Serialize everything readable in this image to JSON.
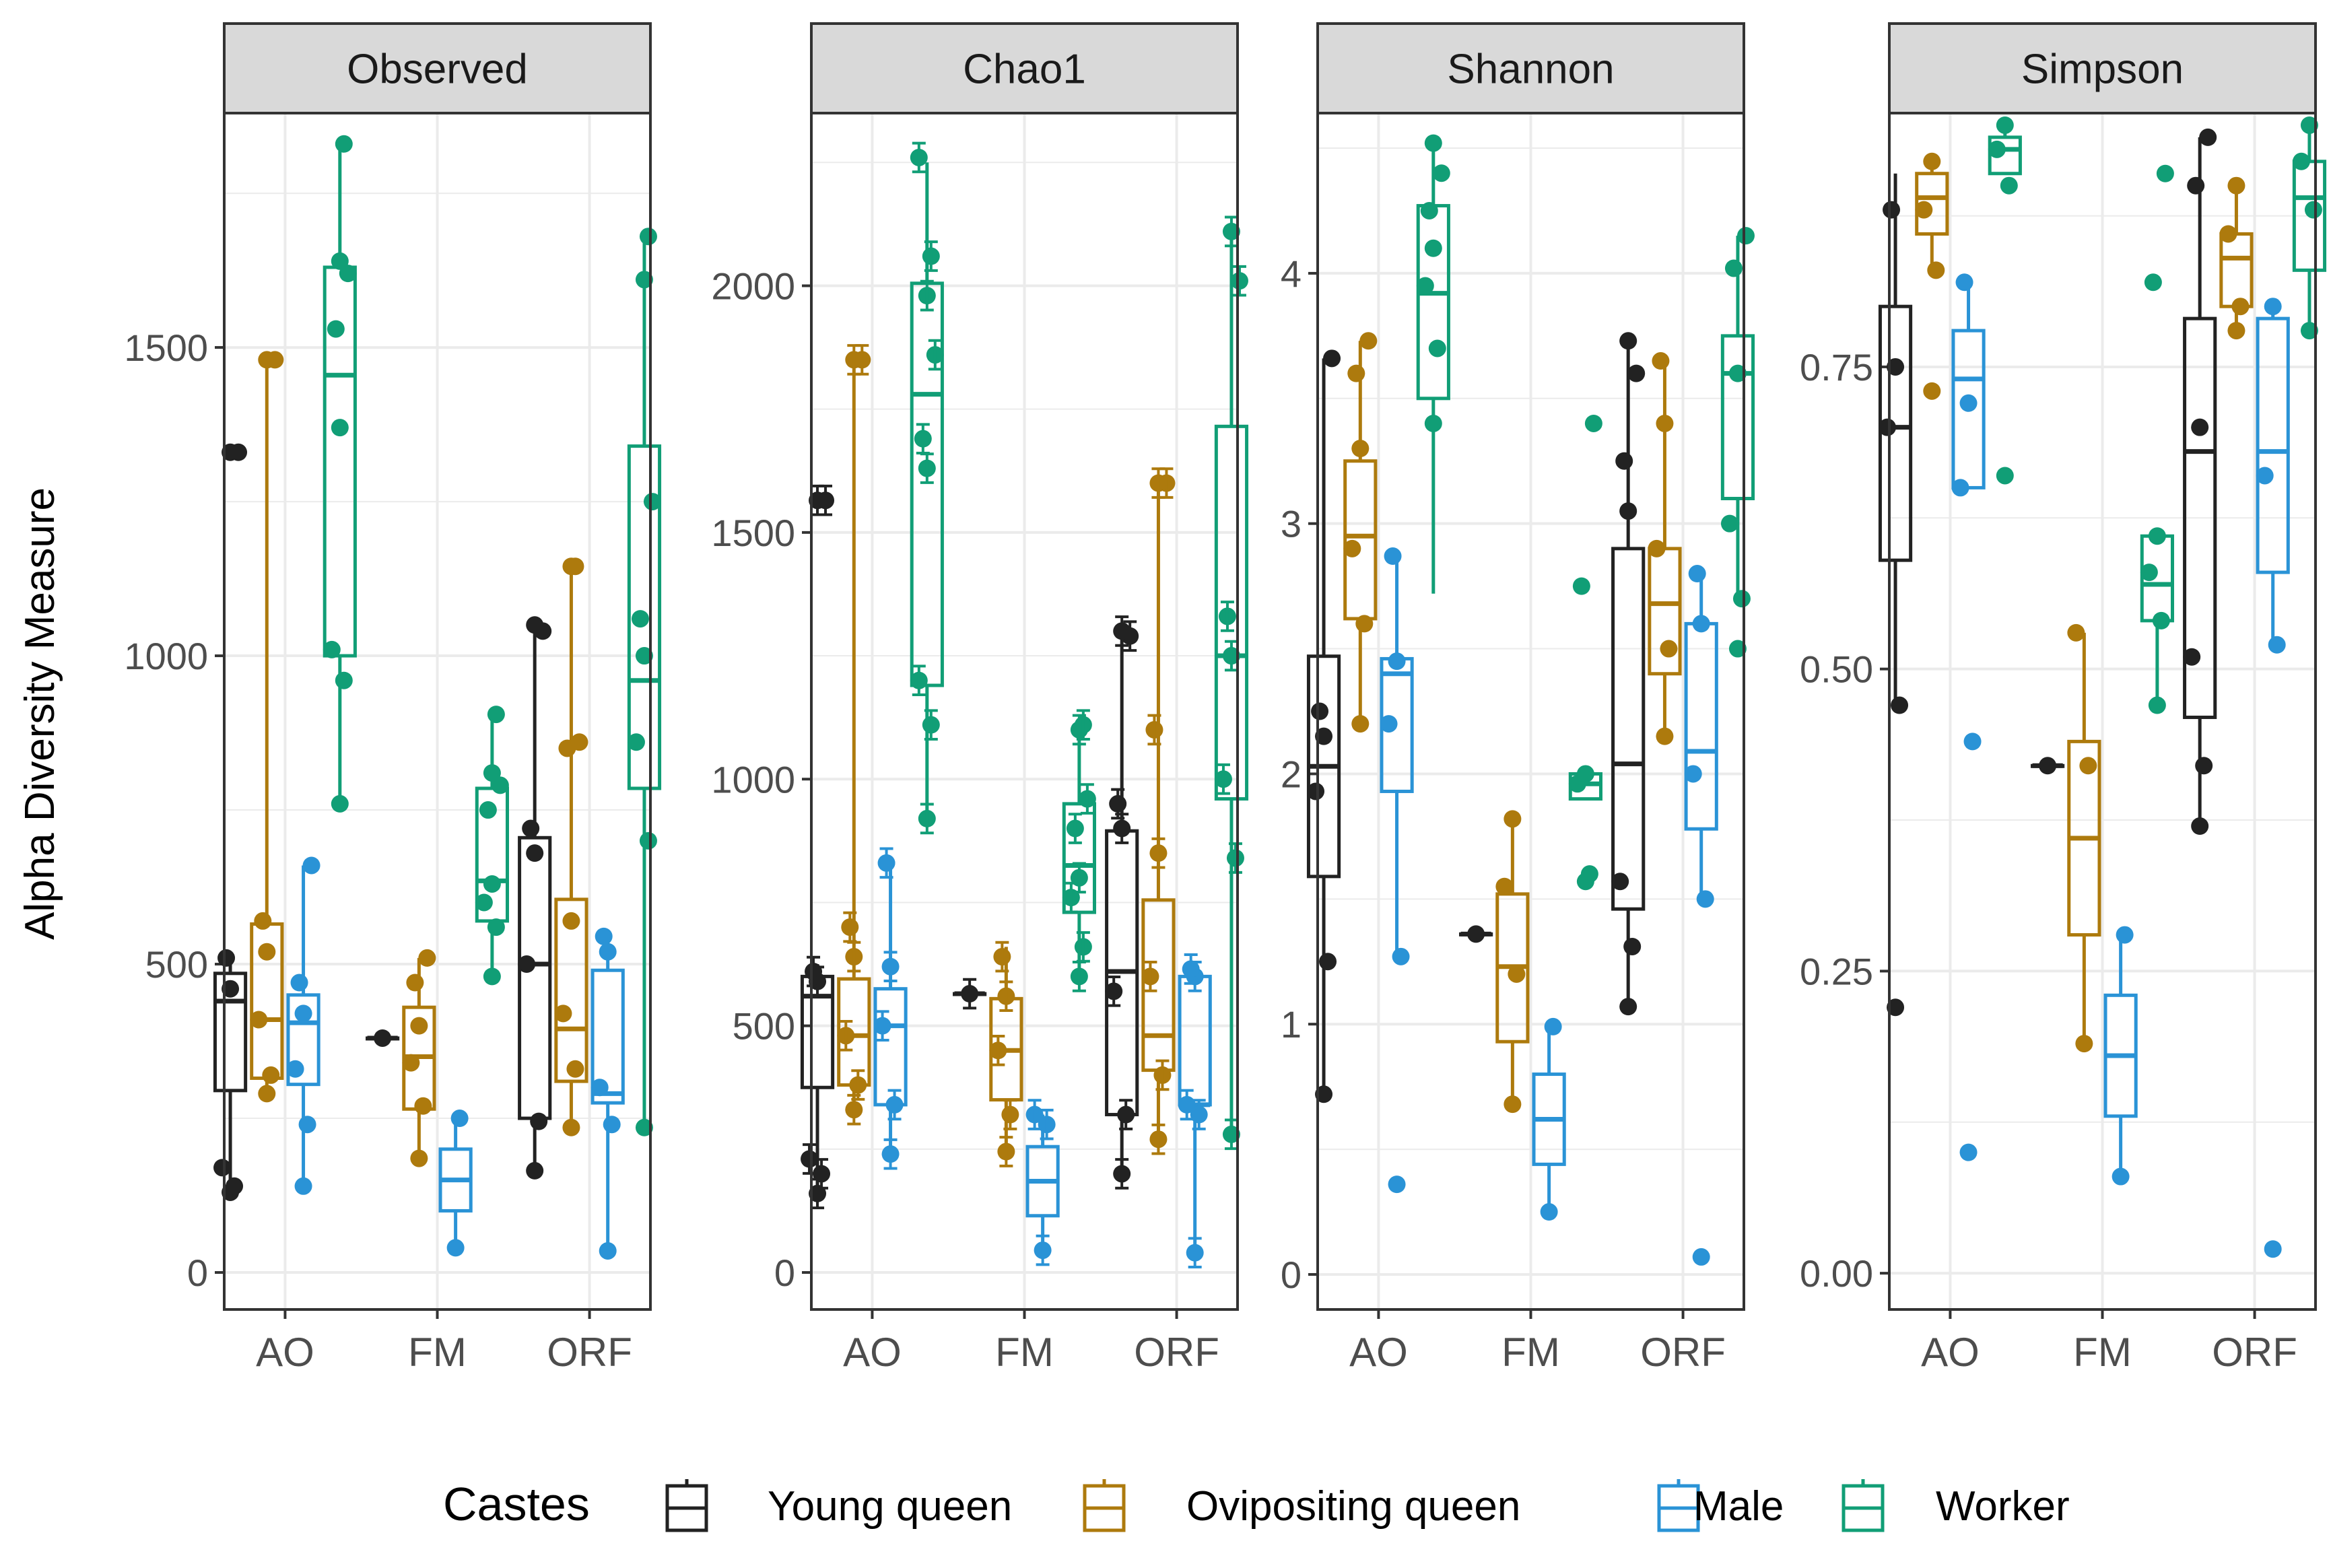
{
  "colors": {
    "Young queen": "#222222",
    "Ovipositing queen": "#AD7A0D",
    "Male": "#2A93D6",
    "Worker": "#119E76",
    "strip_bg": "#D9D9D9",
    "grid": "#EBEBEB",
    "axis_text": "#4D4D4D"
  },
  "ylabel": "Alpha Diversity Measure",
  "legend": {
    "title": "Castes",
    "entries": [
      "Young queen",
      "Ovipositing queen",
      "Male",
      "Worker"
    ]
  },
  "chart_data": [
    {
      "type": "box",
      "title": "Observed",
      "categories": [
        "AO",
        "FM",
        "ORF"
      ],
      "ylim": [
        -60,
        1880
      ],
      "yticks": [
        0,
        500,
        1000,
        1500
      ],
      "ytick_labels": [
        "0",
        "500",
        "1000",
        "1500"
      ],
      "series": [
        {
          "name": "Young queen",
          "boxes": [
            {
              "min": 130,
              "q1": 295,
              "median": 440,
              "q3": 485,
              "max": 500,
              "points": [
                130,
                140,
                170,
                460,
                510,
                1330,
                1330
              ]
            },
            {
              "min": 380,
              "q1": 380,
              "median": 380,
              "q3": 380,
              "max": 380,
              "points": [
                380
              ]
            },
            {
              "min": 165,
              "q1": 250,
              "median": 500,
              "q3": 705,
              "max": 1040,
              "points": [
                165,
                245,
                500,
                680,
                720,
                1040,
                1050
              ]
            }
          ]
        },
        {
          "name": "Ovipositing queen",
          "boxes": [
            {
              "min": 280,
              "q1": 315,
              "median": 410,
              "q3": 565,
              "max": 1480,
              "points": [
                290,
                320,
                410,
                520,
                570,
                1480,
                1480
              ]
            },
            {
              "min": 180,
              "q1": 265,
              "median": 350,
              "q3": 430,
              "max": 510,
              "points": [
                185,
                270,
                340,
                400,
                470,
                510
              ]
            },
            {
              "min": 230,
              "q1": 310,
              "median": 395,
              "q3": 605,
              "max": 1145,
              "points": [
                235,
                330,
                420,
                570,
                850,
                860,
                1145,
                1145
              ]
            }
          ]
        },
        {
          "name": "Male",
          "boxes": [
            {
              "min": 140,
              "q1": 305,
              "median": 405,
              "q3": 450,
              "max": 660,
              "points": [
                140,
                240,
                330,
                420,
                470,
                660
              ]
            },
            {
              "min": 40,
              "q1": 100,
              "median": 150,
              "q3": 200,
              "max": 250,
              "points": [
                40,
                250
              ]
            },
            {
              "min": 35,
              "q1": 275,
              "median": 290,
              "q3": 490,
              "max": 545,
              "points": [
                35,
                240,
                300,
                520,
                545
              ]
            }
          ]
        },
        {
          "name": "Worker",
          "boxes": [
            {
              "min": 770,
              "q1": 1000,
              "median": 1455,
              "q3": 1630,
              "max": 1830,
              "points": [
                760,
                960,
                1010,
                1370,
                1530,
                1620,
                1640,
                1830
              ]
            },
            {
              "min": 480,
              "q1": 570,
              "median": 635,
              "q3": 785,
              "max": 905,
              "points": [
                480,
                560,
                600,
                630,
                750,
                790,
                810,
                905
              ]
            },
            {
              "min": 235,
              "q1": 785,
              "median": 960,
              "q3": 1340,
              "max": 1680,
              "points": [
                235,
                700,
                860,
                1000,
                1060,
                1250,
                1610,
                1680
              ]
            }
          ]
        }
      ]
    },
    {
      "type": "box",
      "title": "Chao1",
      "categories": [
        "AO",
        "FM",
        "ORF"
      ],
      "ylim": [
        -75,
        2350
      ],
      "yticks": [
        0,
        500,
        1000,
        1500,
        2000
      ],
      "ytick_labels": [
        "0",
        "500",
        "1000",
        "1500",
        "2000"
      ],
      "series": [
        {
          "name": "Young queen",
          "boxes": [
            {
              "min": 160,
              "q1": 375,
              "median": 560,
              "q3": 600,
              "max": 625,
              "points": [
                160,
                200,
                230,
                590,
                610,
                1565,
                1565
              ]
            },
            {
              "min": 565,
              "q1": 565,
              "median": 565,
              "q3": 565,
              "max": 565,
              "points": [
                565
              ]
            },
            {
              "min": 205,
              "q1": 320,
              "median": 610,
              "q3": 895,
              "max": 1295,
              "points": [
                200,
                320,
                570,
                900,
                950,
                1290,
                1300
              ]
            }
          ]
        },
        {
          "name": "Ovipositing queen",
          "boxes": [
            {
              "min": 325,
              "q1": 380,
              "median": 480,
              "q3": 595,
              "max": 1850,
              "points": [
                330,
                380,
                480,
                640,
                700,
                1850,
                1850
              ]
            },
            {
              "min": 245,
              "q1": 350,
              "median": 450,
              "q3": 555,
              "max": 660,
              "points": [
                245,
                320,
                450,
                560,
                640
              ]
            },
            {
              "min": 270,
              "q1": 410,
              "median": 480,
              "q3": 755,
              "max": 1600,
              "points": [
                270,
                400,
                600,
                850,
                1100,
                1600,
                1600
              ]
            }
          ]
        },
        {
          "name": "Male",
          "boxes": [
            {
              "min": 240,
              "q1": 340,
              "median": 500,
              "q3": 575,
              "max": 830,
              "points": [
                240,
                340,
                500,
                620,
                830
              ]
            },
            {
              "min": 45,
              "q1": 115,
              "median": 185,
              "q3": 255,
              "max": 320,
              "points": [
                45,
                300,
                320
              ]
            },
            {
              "min": 40,
              "q1": 340,
              "median": 340,
              "q3": 600,
              "max": 615,
              "points": [
                40,
                320,
                340,
                600,
                615
              ]
            }
          ]
        },
        {
          "name": "Worker",
          "boxes": [
            {
              "min": 930,
              "q1": 1190,
              "median": 1780,
              "q3": 2005,
              "max": 2250,
              "points": [
                920,
                1110,
                1200,
                1630,
                1690,
                1860,
                1980,
                2060,
                2260
              ]
            },
            {
              "min": 610,
              "q1": 730,
              "median": 825,
              "q3": 950,
              "max": 1115,
              "points": [
                600,
                660,
                760,
                800,
                900,
                960,
                1100,
                1110
              ]
            },
            {
              "min": 280,
              "q1": 960,
              "median": 1250,
              "q3": 1715,
              "max": 2110,
              "points": [
                280,
                840,
                1000,
                1250,
                1330,
                2010,
                2110
              ]
            }
          ]
        }
      ]
    },
    {
      "type": "box",
      "title": "Shannon",
      "categories": [
        "AO",
        "FM",
        "ORF"
      ],
      "ylim": [
        -0.14,
        4.64
      ],
      "yticks": [
        0,
        1,
        2,
        3,
        4
      ],
      "ytick_labels": [
        "0",
        "1",
        "2",
        "3",
        "4"
      ],
      "series": [
        {
          "name": "Young queen",
          "boxes": [
            {
              "min": 0.72,
              "q1": 1.59,
              "median": 2.03,
              "q3": 2.47,
              "max": 3.66,
              "points": [
                0.72,
                1.25,
                1.93,
                2.15,
                2.25,
                3.66
              ]
            },
            {
              "min": 1.36,
              "q1": 1.36,
              "median": 1.36,
              "q3": 1.36,
              "max": 1.36,
              "points": [
                1.36
              ]
            },
            {
              "min": 1.07,
              "q1": 1.46,
              "median": 2.04,
              "q3": 2.9,
              "max": 3.73,
              "points": [
                1.07,
                1.31,
                1.57,
                3.05,
                3.25,
                3.6,
                3.73
              ]
            }
          ]
        },
        {
          "name": "Ovipositing queen",
          "boxes": [
            {
              "min": 2.2,
              "q1": 2.62,
              "median": 2.95,
              "q3": 3.25,
              "max": 3.73,
              "points": [
                2.2,
                2.6,
                2.9,
                3.3,
                3.6,
                3.73
              ]
            },
            {
              "min": 0.68,
              "q1": 0.93,
              "median": 1.23,
              "q3": 1.52,
              "max": 1.82,
              "points": [
                0.68,
                1.2,
                1.55,
                1.82
              ]
            },
            {
              "min": 2.15,
              "q1": 2.4,
              "median": 2.68,
              "q3": 2.9,
              "max": 3.65,
              "points": [
                2.15,
                2.5,
                2.9,
                3.4,
                3.65
              ]
            }
          ]
        },
        {
          "name": "Male",
          "boxes": [
            {
              "min": 1.27,
              "q1": 1.93,
              "median": 2.4,
              "q3": 2.46,
              "max": 2.87,
              "points": [
                0.36,
                1.27,
                2.2,
                2.45,
                2.87
              ]
            },
            {
              "min": 0.25,
              "q1": 0.44,
              "median": 0.62,
              "q3": 0.8,
              "max": 0.99,
              "points": [
                0.25,
                0.99
              ]
            },
            {
              "min": 1.5,
              "q1": 1.78,
              "median": 2.09,
              "q3": 2.6,
              "max": 2.8,
              "points": [
                0.07,
                1.5,
                2.0,
                2.6,
                2.8
              ]
            }
          ]
        },
        {
          "name": "Worker",
          "boxes": [
            {
              "min": 2.72,
              "q1": 3.5,
              "median": 3.92,
              "q3": 4.27,
              "max": 4.52,
              "points": [
                3.4,
                3.7,
                3.95,
                4.1,
                4.25,
                4.4,
                4.52
              ]
            },
            {
              "min": 1.9,
              "q1": 1.9,
              "median": 1.96,
              "q3": 2.0,
              "max": 2.0,
              "points": [
                1.57,
                1.6,
                1.96,
                2.0,
                2.75,
                3.4
              ]
            },
            {
              "min": 2.7,
              "q1": 3.1,
              "median": 3.6,
              "q3": 3.75,
              "max": 4.15,
              "points": [
                2.5,
                2.7,
                3.0,
                3.6,
                4.02,
                4.15
              ]
            }
          ]
        }
      ]
    },
    {
      "type": "box",
      "title": "Simpson",
      "categories": [
        "AO",
        "FM",
        "ORF"
      ],
      "ylim": [
        -0.03,
        0.96
      ],
      "yticks": [
        0,
        0.25,
        0.5,
        0.75
      ],
      "ytick_labels": [
        "0.00",
        "0.25",
        "0.50",
        "0.75"
      ],
      "series": [
        {
          "name": "Young queen",
          "boxes": [
            {
              "min": 0.47,
              "q1": 0.59,
              "median": 0.7,
              "q3": 0.8,
              "max": 0.91,
              "points": [
                0.22,
                0.47,
                0.7,
                0.75,
                0.88
              ]
            },
            {
              "min": 0.42,
              "q1": 0.42,
              "median": 0.42,
              "q3": 0.42,
              "max": 0.42,
              "points": [
                0.42
              ]
            },
            {
              "min": 0.37,
              "q1": 0.46,
              "median": 0.68,
              "q3": 0.79,
              "max": 0.94,
              "points": [
                0.37,
                0.42,
                0.51,
                0.7,
                0.9,
                0.94
              ]
            }
          ]
        },
        {
          "name": "Ovipositing queen",
          "boxes": [
            {
              "min": 0.83,
              "q1": 0.86,
              "median": 0.89,
              "q3": 0.91,
              "max": 0.92,
              "points": [
                0.73,
                0.83,
                0.88,
                0.92
              ]
            },
            {
              "min": 0.19,
              "q1": 0.28,
              "median": 0.36,
              "q3": 0.44,
              "max": 0.53,
              "points": [
                0.19,
                0.42,
                0.53
              ]
            },
            {
              "min": 0.78,
              "q1": 0.8,
              "median": 0.84,
              "q3": 0.86,
              "max": 0.9,
              "points": [
                0.78,
                0.8,
                0.86,
                0.9
              ]
            }
          ]
        },
        {
          "name": "Male",
          "boxes": [
            {
              "min": 0.65,
              "q1": 0.65,
              "median": 0.74,
              "q3": 0.78,
              "max": 0.82,
              "points": [
                0.1,
                0.44,
                0.65,
                0.72,
                0.82
              ]
            },
            {
              "min": 0.08,
              "q1": 0.13,
              "median": 0.18,
              "q3": 0.23,
              "max": 0.28,
              "points": [
                0.08,
                0.28
              ]
            },
            {
              "min": 0.52,
              "q1": 0.58,
              "median": 0.68,
              "q3": 0.79,
              "max": 0.8,
              "points": [
                0.02,
                0.52,
                0.66,
                0.8
              ]
            }
          ]
        },
        {
          "name": "Worker",
          "boxes": [
            {
              "min": 0.91,
              "q1": 0.91,
              "median": 0.93,
              "q3": 0.94,
              "max": 0.95,
              "points": [
                0.66,
                0.9,
                0.93,
                0.95
              ]
            },
            {
              "min": 0.47,
              "q1": 0.54,
              "median": 0.57,
              "q3": 0.61,
              "max": 0.61,
              "points": [
                0.47,
                0.54,
                0.58,
                0.61,
                0.82,
                0.91
              ]
            },
            {
              "min": 0.78,
              "q1": 0.83,
              "median": 0.89,
              "q3": 0.92,
              "max": 0.95,
              "points": [
                0.78,
                0.88,
                0.92,
                0.95
              ]
            }
          ]
        }
      ]
    }
  ]
}
